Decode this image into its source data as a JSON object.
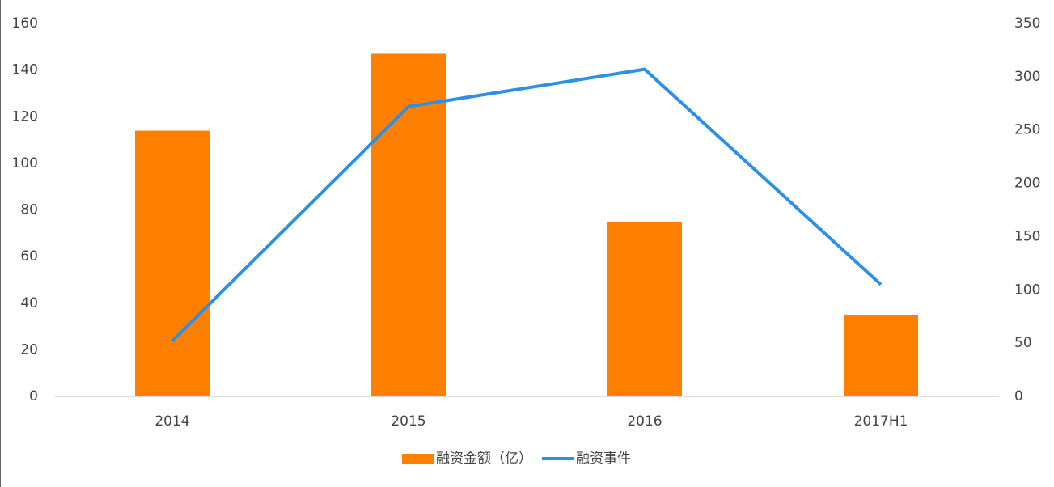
{
  "chart_data": {
    "type": "bar",
    "categories": [
      "2014",
      "2015",
      "2016",
      "2017H1"
    ],
    "series": [
      {
        "name": "融资金额（亿）",
        "type": "bar",
        "color": "#ff8000",
        "values": [
          114,
          147,
          75,
          35
        ]
      },
      {
        "name": "融资事件",
        "type": "line",
        "color": "#2e8fe6",
        "axis": "y2",
        "values": [
          52,
          272,
          307,
          105
        ]
      }
    ],
    "ylim": [
      0,
      160
    ],
    "yticks": [
      0,
      20,
      40,
      60,
      80,
      100,
      120,
      140,
      160
    ],
    "y2lim": [
      0,
      350
    ],
    "y2ticks": [
      0,
      50,
      100,
      150,
      200,
      250,
      300,
      350
    ],
    "legend": "bottom",
    "grid": false
  }
}
